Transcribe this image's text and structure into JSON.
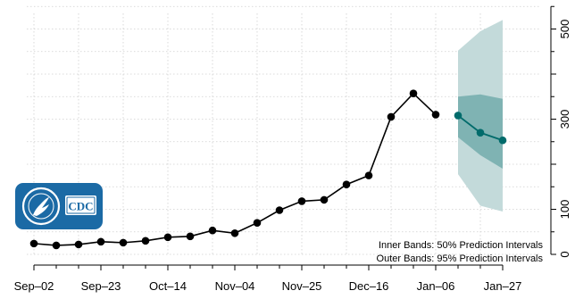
{
  "chart_data": {
    "type": "line",
    "title": "",
    "xlabel": "",
    "ylabel": "",
    "x_tick_labels": [
      "Sep–02",
      "Sep–23",
      "Oct–14",
      "Nov–04",
      "Nov–25",
      "Dec–16",
      "Jan–06",
      "Jan–27"
    ],
    "y_ticks": [
      0,
      100,
      300,
      500
    ],
    "ylim": [
      0,
      550
    ],
    "grid": true,
    "observed": {
      "x_index": [
        0,
        1,
        2,
        3,
        4,
        5,
        6,
        7,
        8,
        9,
        10,
        11,
        12,
        13,
        14,
        15,
        16,
        17,
        18
      ],
      "values": [
        24,
        20,
        22,
        28,
        26,
        30,
        38,
        40,
        53,
        47,
        70,
        98,
        118,
        121,
        155,
        175,
        305,
        357,
        310
      ]
    },
    "forecast": {
      "x_index": [
        19,
        20,
        21
      ],
      "median": [
        308,
        270,
        253
      ],
      "pi50_lower": [
        260,
        220,
        190
      ],
      "pi50_upper": [
        350,
        355,
        345
      ],
      "pi95_lower": [
        178,
        108,
        95
      ],
      "pi95_upper": [
        452,
        495,
        520
      ]
    },
    "legend_notes": [
      "Inner Bands: 50% Prediction Intervals",
      "Outer Bands: 95% Prediction Intervals"
    ],
    "colors": {
      "observed": "#000000",
      "forecast": "#006b6b",
      "band_inner": "#7fb3b3",
      "band_outer": "#c3dada",
      "grid": "#cfcfcf",
      "logo_bg": "#1b6aa5"
    },
    "logo": {
      "icon": "hhs-cdc-logo",
      "text": "CDC"
    }
  }
}
